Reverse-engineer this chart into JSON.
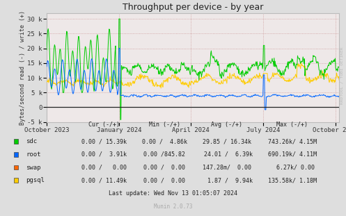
{
  "title": "Throughput per device - by year",
  "ylabel": "Bytes/second read (-) / write (+)",
  "plot_bg_color": "#EEE8E8",
  "ylim": [
    -5000,
    32000
  ],
  "yticks": [
    -5000,
    0,
    5000,
    10000,
    15000,
    20000,
    25000,
    30000
  ],
  "ytick_labels": [
    "-5 k",
    "0",
    "5 k",
    "10 k",
    "15 k",
    "20 k",
    "25 k",
    "30 k"
  ],
  "x_tick_labels": [
    "October 2023",
    "January 2024",
    "April 2024",
    "July 2024",
    "October 2024"
  ],
  "x_tick_positions": [
    0.0,
    0.247,
    0.493,
    0.74,
    0.987
  ],
  "jan2024": 0.247,
  "apr2024": 0.493,
  "jul2024": 0.74,
  "oct2024": 0.987,
  "sdc_color": "#00CC00",
  "root_color": "#0066FF",
  "swap_color": "#FF6600",
  "pgsql_color": "#FFCC00",
  "legend_entries": [
    {
      "label": "sdc",
      "color": "#00CC00",
      "cur": "0.00 / 15.39k",
      "min": "0.00 /  4.86k",
      "avg": "29.85 / 16.34k",
      "max": "743.26k/ 4.15M"
    },
    {
      "label": "root",
      "color": "#0066FF",
      "cur": "0.00 /  3.91k",
      "min": "0.00 /845.82",
      "avg": " 24.01 /  6.39k",
      "max": "690.19k/ 4.11M"
    },
    {
      "label": "swap",
      "color": "#FF6600",
      "cur": "0.00 /   0.00",
      "min": "0.00 /  0.00",
      "avg": "147.28m/  0.00",
      "max": "  6.27k/ 0.00"
    },
    {
      "label": "pgsql",
      "color": "#FFCC00",
      "cur": "0.00 / 11.49k",
      "min": "0.00 /  0.00",
      "avg": "  1.87 /  9.94k",
      "max": "135.58k/ 1.18M"
    }
  ],
  "footer": "Last update: Wed Nov 13 01:05:07 2024",
  "munin_version": "Munin 2.0.73",
  "watermark": "RRDTOOL / TOBI OETIKER"
}
